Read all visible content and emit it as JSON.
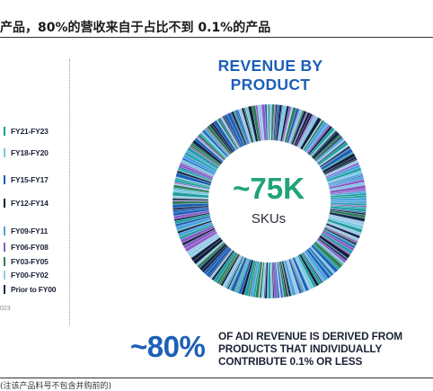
{
  "header": {
    "title": "产品，80%的营收来自于占比不到 0.1%的产品"
  },
  "legend": {
    "items": [
      {
        "label": "FY21-FY23",
        "color": "#1f9fa0"
      },
      {
        "label": "FY18-FY20",
        "color": "#7ec8e3"
      },
      {
        "label": "FY15-FY17",
        "color": "#1d5fb8"
      },
      {
        "label": "FY12-FY14",
        "color": "#0f1f3d"
      },
      {
        "label": "FY09-FY11",
        "color": "#4aa3df"
      },
      {
        "label": "FY06-FY08",
        "color": "#8a5cc7"
      },
      {
        "label": "FY03-FY05",
        "color": "#2e7d5b"
      },
      {
        "label": "FY00-FY02",
        "color": "#9ec9e8"
      },
      {
        "label": "Prior to FY00",
        "color": "#13294b"
      }
    ],
    "footnote": "023"
  },
  "chart_data": {
    "type": "pie",
    "title": "REVENUE BY PRODUCT",
    "center_value": "~75K",
    "center_unit": "SKUs",
    "categories": [
      "FY21-FY23",
      "FY18-FY20",
      "FY15-FY17",
      "FY12-FY14",
      "FY09-FY11",
      "FY06-FY08",
      "FY03-FY05",
      "FY00-FY02",
      "Prior to FY00"
    ],
    "series_colors": [
      "#1f9fa0",
      "#7ec8e3",
      "#1d5fb8",
      "#0f1f3d",
      "#4aa3df",
      "#8a5cc7",
      "#2e7d5b",
      "#9ec9e8",
      "#13294b"
    ]
  },
  "stat": {
    "value": "~80%",
    "lines": [
      "OF ADI REVENUE IS DERIVED FROM",
      "PRODUCTS THAT INDIVIDUALLY",
      "CONTRIBUTE 0.1% OR LESS"
    ]
  },
  "bottom_note": "(注该产品料号不包含并购前的)"
}
